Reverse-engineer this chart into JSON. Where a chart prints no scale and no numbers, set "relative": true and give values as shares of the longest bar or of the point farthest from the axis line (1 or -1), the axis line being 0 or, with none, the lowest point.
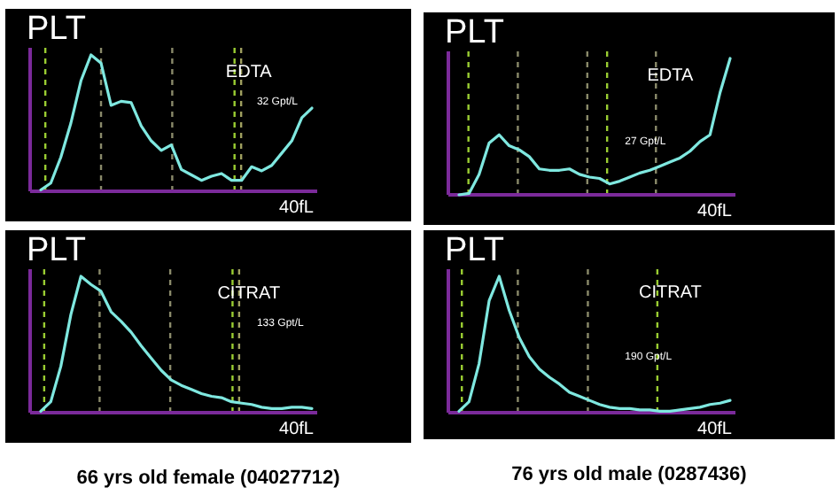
{
  "chart_data": [
    {
      "type": "line",
      "title": "PLT",
      "relative": true,
      "marker": "none",
      "line_style": "solid",
      "annotations": [
        "EDTA",
        "32 Gpt/L",
        "40fL"
      ],
      "grid": "x",
      "categories": [
        null,
        null,
        null,
        null,
        null,
        null,
        null,
        null,
        null,
        null,
        null,
        null,
        null,
        null,
        null,
        null,
        null,
        null,
        null,
        null,
        null,
        null,
        null,
        null,
        null,
        null,
        null,
        null
      ],
      "series": [
        {
          "color": "#7fe8e0",
          "values": [
            0.01,
            0.06,
            0.25,
            0.5,
            0.81,
            1,
            0.94,
            0.63,
            0.66,
            0.65,
            0.48,
            0.37,
            0.3,
            0.34,
            0.16,
            0.12,
            0.08,
            0.11,
            0.13,
            0.08,
            0.08,
            0.18,
            0.15,
            0.19,
            0.28,
            0.37,
            0.54,
            0.61
          ]
        }
      ]
    },
    {
      "type": "line",
      "title": "PLT",
      "relative": true,
      "marker": "none",
      "line_style": "solid",
      "annotations": [
        "EDTA",
        "27 Gpt/L",
        "40fL"
      ],
      "grid": "x",
      "categories": [
        null,
        null,
        null,
        null,
        null,
        null,
        null,
        null,
        null,
        null,
        null,
        null,
        null,
        null,
        null,
        null,
        null,
        null,
        null,
        null,
        null,
        null,
        null,
        null,
        null,
        null,
        null,
        null
      ],
      "series": [
        {
          "color": "#7fe8e0",
          "values": [
            0,
            0.01,
            0.15,
            0.38,
            0.44,
            0.36,
            0.33,
            0.28,
            0.19,
            0.18,
            0.18,
            0.19,
            0.15,
            0.13,
            0.12,
            0.08,
            0.1,
            0.13,
            0.16,
            0.18,
            0.21,
            0.24,
            0.27,
            0.32,
            0.39,
            0.44,
            0.75,
            1
          ]
        }
      ]
    },
    {
      "type": "line",
      "title": "PLT",
      "relative": true,
      "marker": "none",
      "line_style": "solid",
      "annotations": [
        "CITRAT",
        "133 Gpt/L",
        "40fL",
        "66 yrs old female (04027712)"
      ],
      "grid": "x",
      "categories": [
        null,
        null,
        null,
        null,
        null,
        null,
        null,
        null,
        null,
        null,
        null,
        null,
        null,
        null,
        null,
        null,
        null,
        null,
        null,
        null,
        null,
        null,
        null,
        null,
        null,
        null,
        null,
        null
      ],
      "series": [
        {
          "color": "#7fe8e0",
          "values": [
            0.01,
            0.08,
            0.34,
            0.72,
            1,
            0.94,
            0.89,
            0.74,
            0.67,
            0.59,
            0.49,
            0.4,
            0.31,
            0.24,
            0.2,
            0.17,
            0.14,
            0.12,
            0.11,
            0.08,
            0.07,
            0.06,
            0.04,
            0.03,
            0.03,
            0.04,
            0.04,
            0.03
          ]
        }
      ]
    },
    {
      "type": "line",
      "title": "PLT",
      "relative": true,
      "marker": "none",
      "line_style": "solid",
      "annotations": [
        "CITRAT",
        "190 Gpt/L",
        "40fL",
        "76 yrs old male (0287436)"
      ],
      "grid": "x",
      "categories": [
        null,
        null,
        null,
        null,
        null,
        null,
        null,
        null,
        null,
        null,
        null,
        null,
        null,
        null,
        null,
        null,
        null,
        null,
        null,
        null,
        null,
        null,
        null,
        null,
        null,
        null,
        null,
        null
      ],
      "series": [
        {
          "color": "#7fe8e0",
          "values": [
            0.01,
            0.08,
            0.36,
            0.82,
            1,
            0.75,
            0.55,
            0.41,
            0.32,
            0.26,
            0.21,
            0.15,
            0.12,
            0.09,
            0.06,
            0.04,
            0.03,
            0.03,
            0.02,
            0.02,
            0.01,
            0.01,
            0.02,
            0.03,
            0.04,
            0.06,
            0.07,
            0.09
          ]
        }
      ]
    }
  ]
}
